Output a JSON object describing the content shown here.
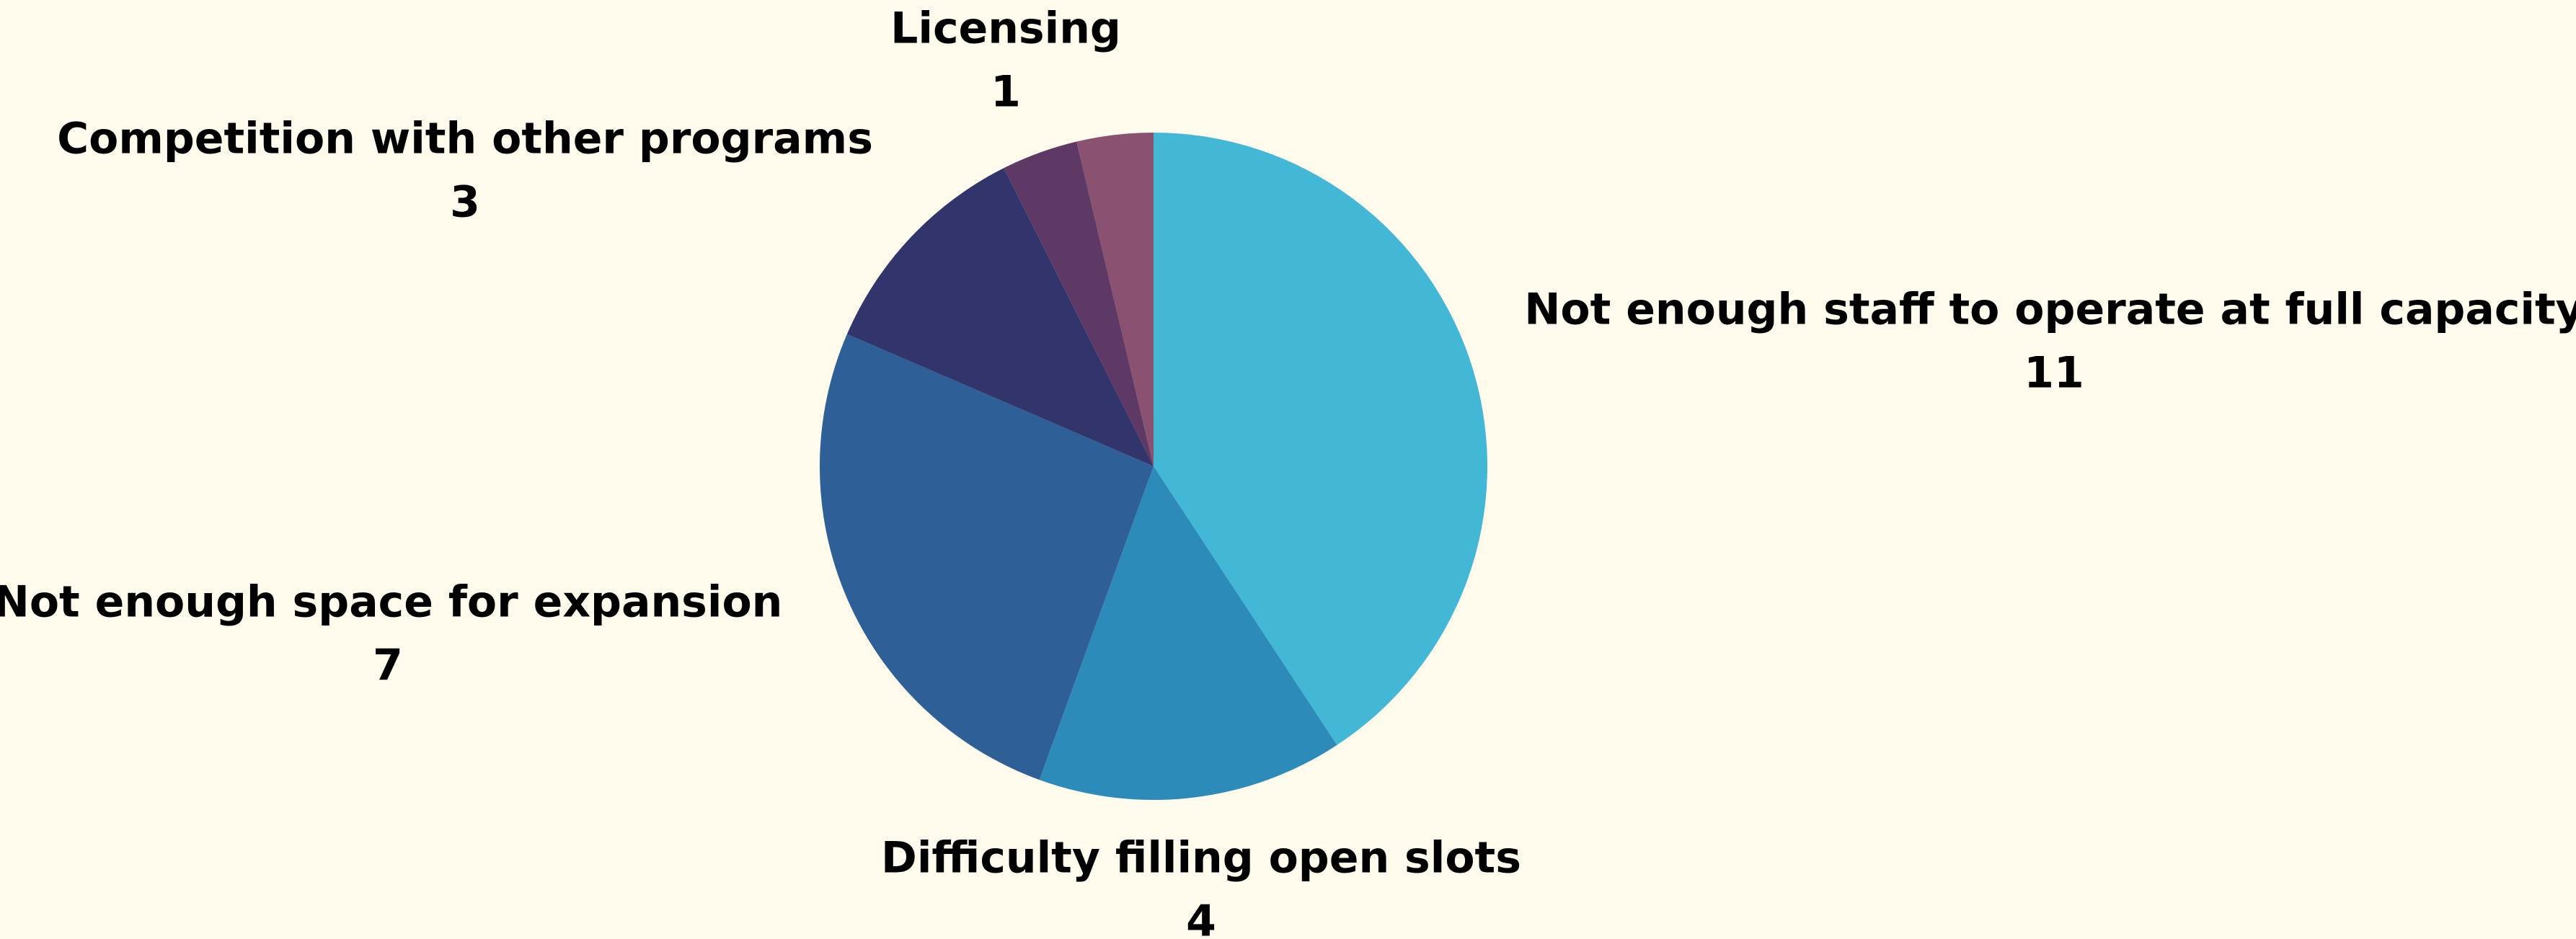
{
  "chart_data": {
    "type": "pie",
    "categories": [
      "Not enough staff to operate at full capacity",
      "Difficulty filling open slots",
      "Not enough space for expansion",
      "Competition with other programs",
      "Licensing",
      null
    ],
    "values": [
      11,
      4,
      7,
      3,
      1,
      1
    ],
    "colors": [
      "#42b7d6",
      "#2d8bba",
      "#2e5f97",
      "#31356b",
      "#5e3966",
      "#8a5170"
    ]
  }
}
